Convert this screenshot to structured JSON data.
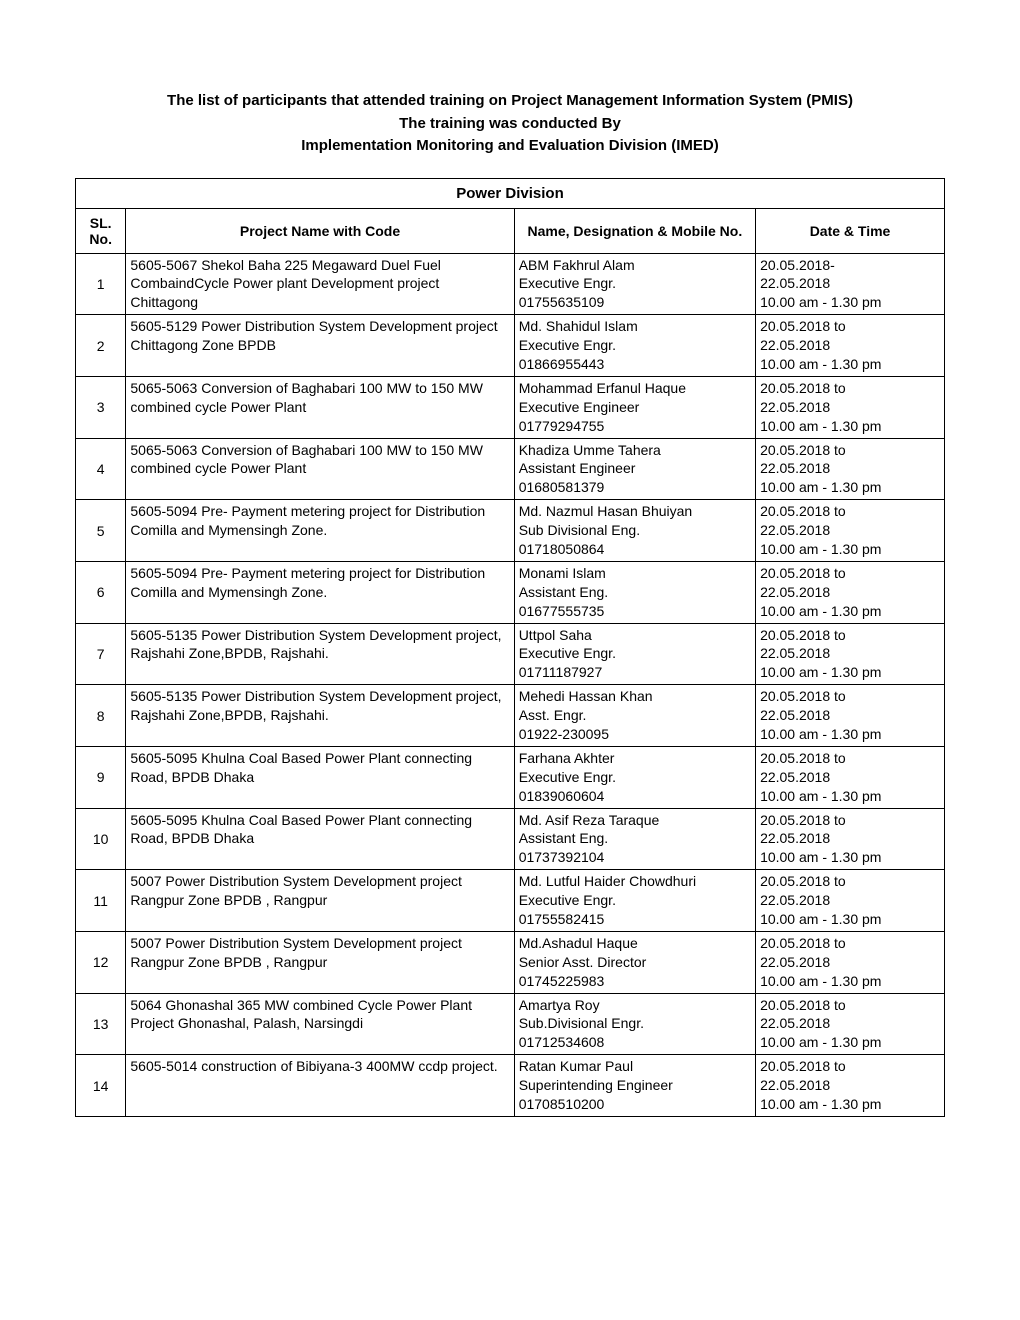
{
  "header": {
    "line1": "The list of participants that attended training on Project Management Information System (PMIS)",
    "line2": "The training was conducted By",
    "line3": "Implementation Monitoring and Evaluation Division (IMED)"
  },
  "division_title": "Power Division",
  "columns": {
    "sl": "SL. No.",
    "project": "Project Name with  Code",
    "name": "Name, Designation & Mobile No.",
    "date": "Date & Time"
  },
  "rows": [
    {
      "sl": "1",
      "project": "5605-5067 Shekol Baha 225 Megaward Duel Fuel CombaindCycle Power plant Development project Chittagong",
      "name": "ABM Fakhrul Alam\nExecutive Engr.\n01755635109",
      "date": "20.05.2018-\n22.05.2018\n10.00 am - 1.30 pm"
    },
    {
      "sl": "2",
      "project": "5605-5129 Power Distribution System Development project Chittagong Zone BPDB",
      "name": "Md. Shahidul Islam\nExecutive Engr.\n01866955443",
      "date": "20.05.2018 to\n22.05.2018\n10.00 am - 1.30 pm"
    },
    {
      "sl": "3",
      "project": "5065-5063 Conversion of Baghabari 100 MW to 150 MW combined cycle Power Plant",
      "name": "Mohammad Erfanul Haque\nExecutive Engineer\n01779294755",
      "date": "20.05.2018 to\n22.05.2018\n10.00 am - 1.30 pm"
    },
    {
      "sl": "4",
      "project": "5065-5063 Conversion of Baghabari 100 MW to 150 MW combined cycle Power Plant",
      "name": "Khadiza Umme Tahera\nAssistant Engineer\n01680581379",
      "date": "20.05.2018 to\n22.05.2018\n10.00 am - 1.30 pm"
    },
    {
      "sl": "5",
      "project": "5605-5094 Pre- Payment metering project for Distribution Comilla and Mymensingh Zone.",
      "name": "Md. Nazmul Hasan Bhuiyan\nSub Divisional Eng.\n01718050864",
      "date": "20.05.2018 to\n22.05.2018\n10.00 am - 1.30 pm"
    },
    {
      "sl": "6",
      "project": "5605-5094 Pre- Payment metering project for Distribution Comilla and Mymensingh Zone.",
      "name": "Monami Islam\nAssistant Eng.\n01677555735",
      "date": "20.05.2018 to\n22.05.2018\n10.00 am - 1.30 pm"
    },
    {
      "sl": "7",
      "project": "5605-5135 Power Distribution System Development project, Rajshahi Zone,BPDB, Rajshahi.",
      "name": "Uttpol Saha\nExecutive Engr.\n01711187927",
      "date": "20.05.2018 to\n22.05.2018\n10.00 am - 1.30 pm"
    },
    {
      "sl": "8",
      "project": "5605-5135 Power Distribution System Development project, Rajshahi Zone,BPDB, Rajshahi.",
      "name": "Mehedi Hassan Khan\nAsst. Engr.\n01922-230095",
      "date": "20.05.2018 to\n22.05.2018\n10.00 am - 1.30 pm"
    },
    {
      "sl": "9",
      "project": "5605-5095 Khulna Coal Based Power Plant connecting Road, BPDB Dhaka",
      "name": "Farhana Akhter\nExecutive Engr.\n01839060604",
      "date": "20.05.2018 to\n22.05.2018\n10.00 am - 1.30 pm"
    },
    {
      "sl": "10",
      "project": "5605-5095 Khulna Coal Based Power Plant connecting Road, BPDB Dhaka",
      "name": "Md. Asif Reza Taraque\nAssistant Eng.\n01737392104",
      "date": "20.05.2018 to\n22.05.2018\n10.00 am - 1.30 pm"
    },
    {
      "sl": "11",
      "project": "5007 Power Distribution System Development project Rangpur Zone BPDB , Rangpur",
      "name": "Md. Lutful Haider Chowdhuri\nExecutive Engr.\n01755582415",
      "date": "20.05.2018 to\n22.05.2018\n10.00 am - 1.30 pm"
    },
    {
      "sl": "12",
      "project": "5007 Power Distribution System Development project Rangpur Zone BPDB , Rangpur",
      "name": "Md.Ashadul Haque\nSenior Asst. Director\n01745225983",
      "date": "20.05.2018 to\n22.05.2018\n10.00 am - 1.30 pm"
    },
    {
      "sl": "13",
      "project": "5064 Ghonashal 365 MW combined Cycle Power Plant Project Ghonashal, Palash, Narsingdi",
      "name": "Amartya Roy\nSub.Divisional Engr.\n01712534608",
      "date": "20.05.2018 to\n22.05.2018\n10.00 am - 1.30 pm"
    },
    {
      "sl": "14",
      "project": "5605-5014 construction of Bibiyana-3 400MW ccdp project.",
      "name": "Ratan Kumar Paul\nSuperintending Engineer\n01708510200",
      "date": "20.05.2018 to\n22.05.2018\n10.00 am - 1.30 pm"
    }
  ]
}
